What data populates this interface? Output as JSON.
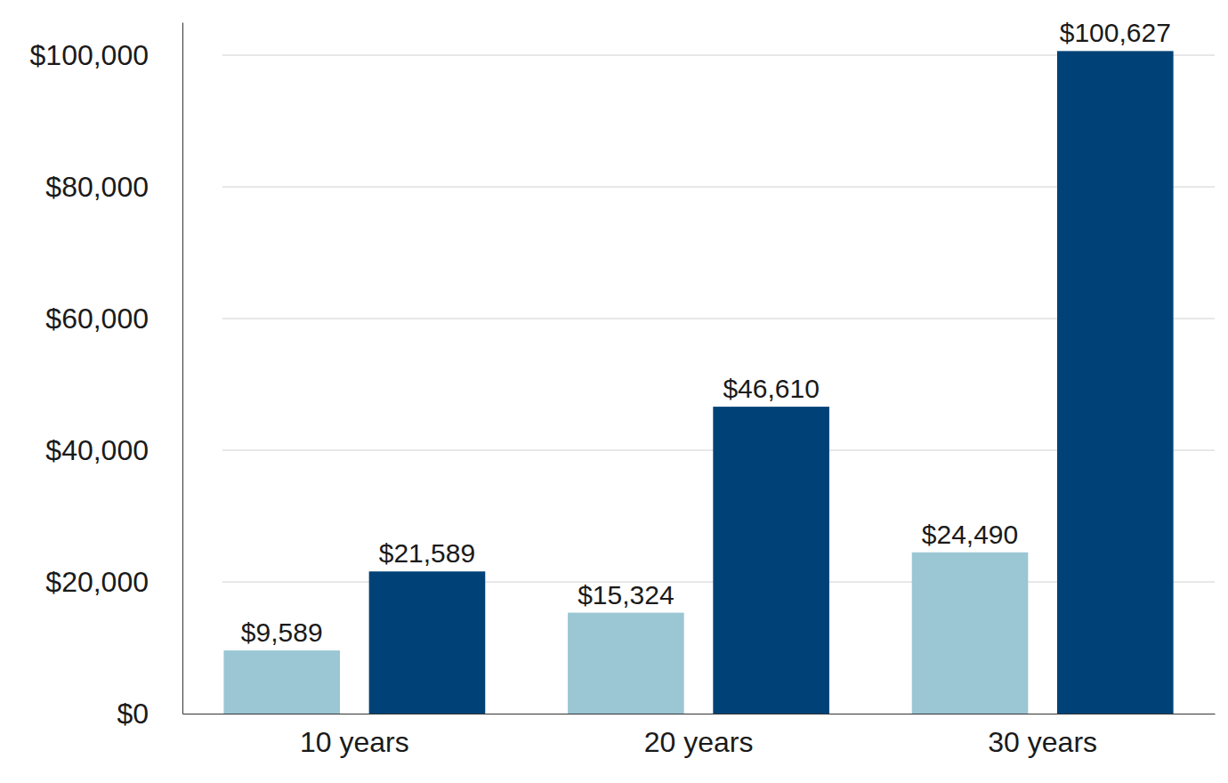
{
  "chart_data": {
    "type": "bar",
    "categories": [
      "10 years",
      "20 years",
      "30 years"
    ],
    "series": [
      {
        "color": "#9bc6d4",
        "values": [
          9589,
          15324,
          24490
        ],
        "value_labels": [
          "$9,589",
          "$15,324",
          "$24,490"
        ]
      },
      {
        "color": "#004277",
        "values": [
          21589,
          46610,
          100627
        ],
        "value_labels": [
          "$21,589",
          "$46,610",
          "$100,627"
        ]
      }
    ],
    "ylim": [
      0,
      105000
    ],
    "yticks": [
      {
        "value": 0,
        "label": "$0"
      },
      {
        "value": 20000,
        "label": "$20,000"
      },
      {
        "value": 40000,
        "label": "$40,000"
      },
      {
        "value": 60000,
        "label": "$60,000"
      },
      {
        "value": 80000,
        "label": "$80,000"
      },
      {
        "value": 100000,
        "label": "$100,000"
      }
    ],
    "grid": true,
    "data_labels": true
  }
}
